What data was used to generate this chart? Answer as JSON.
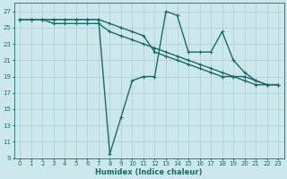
{
  "bg_color": "#cce8ec",
  "grid_color": "#aacdd4",
  "line_color": "#1a6b6b",
  "xlabel": "Humidex (Indice chaleur)",
  "ylim": [
    9,
    28
  ],
  "xlim": [
    -0.5,
    23.5
  ],
  "yticks": [
    9,
    11,
    13,
    15,
    17,
    19,
    21,
    23,
    25,
    27
  ],
  "xticks": [
    0,
    1,
    2,
    3,
    4,
    5,
    6,
    7,
    8,
    9,
    10,
    11,
    12,
    13,
    14,
    15,
    16,
    17,
    18,
    19,
    20,
    21,
    22,
    23
  ],
  "line1_x": [
    0,
    1,
    2,
    3,
    4,
    5,
    6,
    7,
    8,
    9,
    10,
    11,
    12,
    13,
    14,
    15,
    16,
    17,
    18,
    19,
    20,
    21,
    22,
    23
  ],
  "line1_y": [
    26,
    26,
    26,
    25.5,
    25.5,
    25.5,
    25.5,
    25.5,
    24.5,
    24.0,
    23.5,
    23.0,
    22.5,
    22.0,
    21.5,
    21.0,
    20.5,
    20.0,
    19.5,
    19.0,
    18.5,
    18.0,
    18.0,
    18.0
  ],
  "line2_x": [
    0,
    1,
    2,
    3,
    4,
    5,
    6,
    7,
    8,
    9,
    10,
    11,
    12,
    13,
    14,
    15,
    16,
    17,
    18,
    19,
    20,
    21,
    22,
    23
  ],
  "line2_y": [
    26,
    26,
    26,
    26,
    26,
    26,
    26,
    26,
    25.5,
    25.0,
    24.5,
    24.0,
    22.0,
    21.5,
    21.0,
    20.5,
    20.0,
    19.5,
    19.0,
    19.0,
    19.0,
    18.5,
    18.0,
    18.0
  ],
  "line3_x": [
    0,
    1,
    2,
    3,
    4,
    5,
    6,
    7,
    8,
    9,
    10,
    11,
    12,
    13,
    14,
    15,
    16,
    17,
    18,
    19,
    20,
    21,
    22,
    23
  ],
  "line3_y": [
    26,
    26,
    26,
    26,
    26,
    26,
    26,
    26,
    9.5,
    14.0,
    18.5,
    19.0,
    19.0,
    27.0,
    26.5,
    22.0,
    22.0,
    22.0,
    24.5,
    21.0,
    19.5,
    18.5,
    18.0,
    18.0
  ],
  "tick_fontsize": 5.0,
  "xlabel_fontsize": 6.0,
  "linewidth": 1.0,
  "markersize": 3.0
}
